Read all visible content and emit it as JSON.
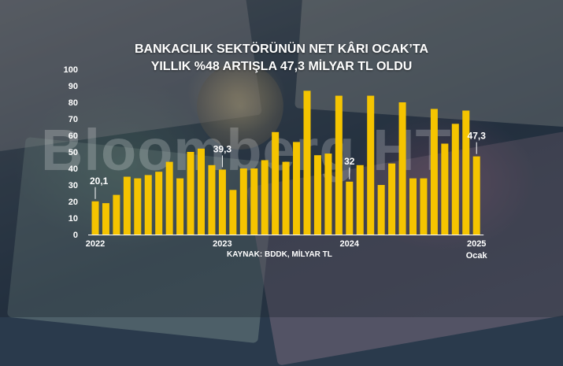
{
  "header": {
    "title_line1": "BANKACILIK SEKTÖRÜNÜN NET KÂRI OCAK’TA",
    "title_line2": "YILLIK %48 ARTIŞLA 47,3 MİLYAR TL OLDU"
  },
  "watermark": "Bloomberg HT",
  "source": "KAYNAK: BDDK, MİLYAR TL",
  "colors": {
    "bar": "#f5c400",
    "text": "#ffffff"
  },
  "chart_data": {
    "type": "bar",
    "title": "BANKACILIK SEKTÖRÜNÜN NET KÂRI OCAK’TA YILLIK %48 ARTIŞLA 47,3 MİLYAR TL OLDU",
    "ylim": [
      0,
      100
    ],
    "yticks": [
      "0",
      "10",
      "20",
      "30",
      "40",
      "50",
      "60",
      "70",
      "80",
      "90",
      "100"
    ],
    "x_labels": [
      {
        "index": 0,
        "text": "2022"
      },
      {
        "index": 12,
        "text": "2023"
      },
      {
        "index": 24,
        "text": "2024"
      },
      {
        "index": 36,
        "text": "2025",
        "sub": "Ocak"
      }
    ],
    "grid": false,
    "legend": "none",
    "values": [
      20.1,
      19,
      24,
      35,
      34,
      36,
      38,
      44,
      34,
      50,
      52,
      42,
      39.3,
      27,
      40,
      40,
      45,
      62,
      44,
      56,
      87,
      48,
      49,
      84,
      32,
      42,
      84,
      30,
      43,
      80,
      34,
      34,
      76,
      55,
      67,
      75,
      47.3
    ],
    "annotations": [
      {
        "index": 0,
        "text": "20,1"
      },
      {
        "index": 12,
        "text": "39,3"
      },
      {
        "index": 24,
        "text": "32"
      },
      {
        "index": 36,
        "text": "47,3"
      }
    ]
  }
}
